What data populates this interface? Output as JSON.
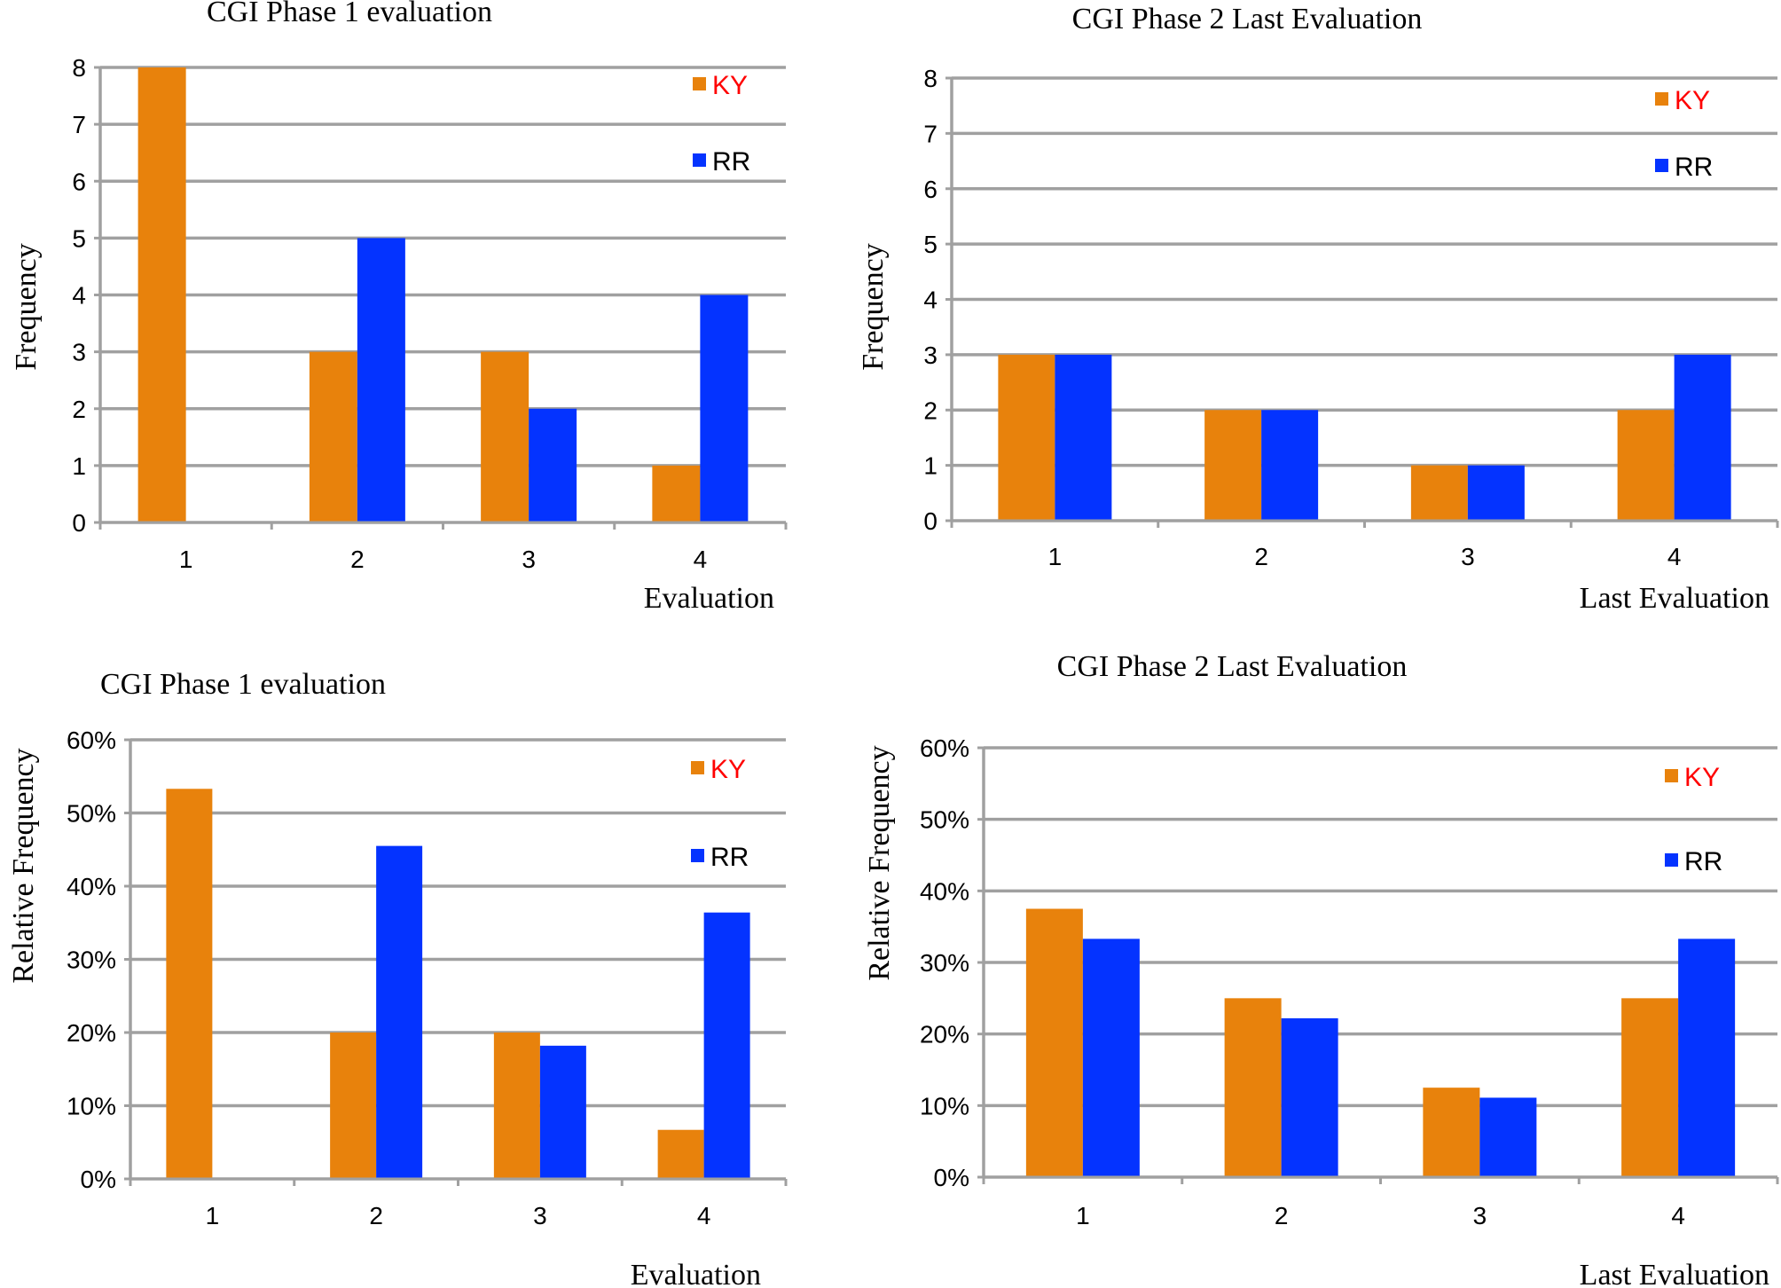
{
  "colors": {
    "KY": "#E8820C",
    "RR": "#0433FF",
    "grid": "#A0A0A0",
    "ky_label": "#FF0000",
    "rr_label": "#000000"
  },
  "chart_data": [
    {
      "type": "bar",
      "title": "CGI Phase 1 evaluation",
      "xlabel": "Evaluation",
      "ylabel": "Frequency",
      "categories": [
        "1",
        "2",
        "3",
        "4"
      ],
      "ylim": [
        0,
        8
      ],
      "yticks": [
        "0",
        "1",
        "2",
        "3",
        "4",
        "5",
        "6",
        "7",
        "8"
      ],
      "yticks_values": [
        0,
        1,
        2,
        3,
        4,
        5,
        6,
        7,
        8
      ],
      "grid": true,
      "legend": "top-right",
      "series": [
        {
          "name": "KY",
          "values": [
            8,
            3,
            3,
            1
          ]
        },
        {
          "name": "RR",
          "values": [
            0,
            5,
            2,
            4
          ]
        }
      ]
    },
    {
      "type": "bar",
      "title": "CGI Phase 2 Last Evaluation",
      "xlabel": "Last Evaluation",
      "ylabel": "Frequency",
      "categories": [
        "1",
        "2",
        "3",
        "4"
      ],
      "ylim": [
        0,
        8
      ],
      "yticks": [
        "0",
        "1",
        "2",
        "3",
        "4",
        "5",
        "6",
        "7",
        "8"
      ],
      "yticks_values": [
        0,
        1,
        2,
        3,
        4,
        5,
        6,
        7,
        8
      ],
      "grid": true,
      "legend": "top-right",
      "series": [
        {
          "name": "KY",
          "values": [
            3,
            2,
            1,
            2
          ]
        },
        {
          "name": "RR",
          "values": [
            3,
            2,
            1,
            3
          ]
        }
      ]
    },
    {
      "type": "bar",
      "title": "CGI Phase 1 evaluation",
      "xlabel": "Evaluation",
      "ylabel": "Relative Frequency",
      "categories": [
        "1",
        "2",
        "3",
        "4"
      ],
      "ylim": [
        0,
        60
      ],
      "yticks": [
        "0%",
        "10%",
        "20%",
        "30%",
        "40%",
        "50%",
        "60%"
      ],
      "yticks_values": [
        0,
        10,
        20,
        30,
        40,
        50,
        60
      ],
      "grid": true,
      "legend": "top-right",
      "series": [
        {
          "name": "KY",
          "values": [
            53.3,
            20.0,
            20.0,
            6.7
          ]
        },
        {
          "name": "RR",
          "values": [
            0,
            45.5,
            18.2,
            36.4
          ]
        }
      ]
    },
    {
      "type": "bar",
      "title": "CGI Phase 2 Last Evaluation",
      "xlabel": "Last Evaluation",
      "ylabel": "Relative Frequency",
      "categories": [
        "1",
        "2",
        "3",
        "4"
      ],
      "ylim": [
        0,
        60
      ],
      "yticks": [
        "0%",
        "10%",
        "20%",
        "30%",
        "40%",
        "50%",
        "60%"
      ],
      "yticks_values": [
        0,
        10,
        20,
        30,
        40,
        50,
        60
      ],
      "grid": true,
      "legend": "top-right",
      "series": [
        {
          "name": "KY",
          "values": [
            37.5,
            25.0,
            12.5,
            25.0
          ]
        },
        {
          "name": "RR",
          "values": [
            33.3,
            22.2,
            11.1,
            33.3
          ]
        }
      ]
    }
  ]
}
